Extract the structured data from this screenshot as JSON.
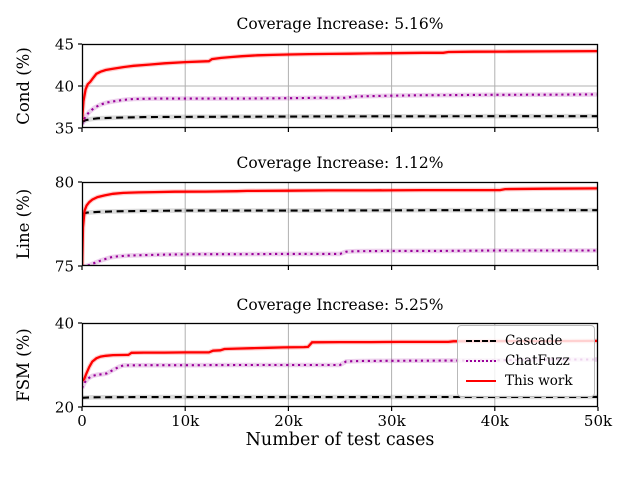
{
  "figure": {
    "xlabel": "Number of test cases",
    "colors": {
      "grid": "#b0b0b0",
      "spine": "#000000",
      "background": "#ffffff",
      "cascade": "#000000",
      "chatfuzz": "#990099",
      "this_work": "#ff0000"
    },
    "legend": {
      "position": "bottom-subplot-upper-right",
      "entries": [
        {
          "label": "Cascade",
          "color": "#000000",
          "style": "dashed"
        },
        {
          "label": "ChatFuzz",
          "color": "#990099",
          "style": "dotted"
        },
        {
          "label": "This work",
          "color": "#ff0000",
          "style": "solid"
        }
      ]
    }
  },
  "chart_data": [
    {
      "type": "line",
      "title": "Coverage Increase: 5.16%",
      "ylabel": "Cond (%)",
      "ylim": [
        35,
        45
      ],
      "yticks": [
        35,
        40,
        45
      ],
      "xlim": [
        0,
        50000
      ],
      "xticks": [
        0,
        10000,
        20000,
        30000,
        40000,
        50000
      ],
      "grid": true,
      "series": [
        {
          "name": "Cascade",
          "color": "#000000",
          "style": "dashed",
          "band": "rgba(90,90,90,0.22)",
          "x": [
            0,
            300,
            800,
            1500,
            2500,
            4000,
            6000,
            9000,
            15000,
            25000,
            40000,
            50000
          ],
          "y": [
            35.7,
            35.9,
            36.05,
            36.15,
            36.2,
            36.25,
            36.3,
            36.32,
            36.35,
            36.38,
            36.4,
            36.4
          ]
        },
        {
          "name": "ChatFuzz",
          "color": "#990099",
          "style": "dotted",
          "band": "rgba(153,0,153,0.18)",
          "x": [
            0,
            300,
            700,
            1200,
            1800,
            2500,
            3200,
            4000,
            5000,
            7000,
            10000,
            15000,
            20000,
            23000,
            25500,
            26500,
            28000,
            30000,
            33000,
            36000,
            40000,
            45000,
            50000
          ],
          "y": [
            35.4,
            36.3,
            36.9,
            37.4,
            37.8,
            38.05,
            38.2,
            38.35,
            38.45,
            38.5,
            38.5,
            38.5,
            38.55,
            38.6,
            38.6,
            38.75,
            38.8,
            38.85,
            38.9,
            38.92,
            38.95,
            38.97,
            39.0
          ]
        },
        {
          "name": "This work",
          "color": "#ff0000",
          "style": "solid",
          "band": "rgba(255,0,0,0.2)",
          "x": [
            0,
            150,
            350,
            550,
            800,
            1100,
            1400,
            1800,
            2300,
            3000,
            4000,
            5000,
            6500,
            8000,
            10000,
            12300,
            12600,
            13500,
            14500,
            15500,
            17000,
            18500,
            20000,
            22000,
            24000,
            26000,
            28000,
            30000,
            33000,
            35000,
            35500,
            38000,
            41000,
            45000,
            50000
          ],
          "y": [
            35.8,
            38.2,
            39.6,
            40.2,
            40.5,
            41.0,
            41.45,
            41.7,
            41.9,
            42.05,
            42.25,
            42.4,
            42.55,
            42.7,
            42.85,
            42.95,
            43.2,
            43.35,
            43.45,
            43.55,
            43.65,
            43.7,
            43.75,
            43.8,
            43.82,
            43.85,
            43.88,
            43.9,
            43.95,
            43.95,
            44.05,
            44.08,
            44.1,
            44.12,
            44.15
          ]
        }
      ]
    },
    {
      "type": "line",
      "title": "Coverage Increase: 1.12%",
      "ylabel": "Line (%)",
      "ylim": [
        75,
        80
      ],
      "yticks": [
        75,
        80
      ],
      "xlim": [
        0,
        50000
      ],
      "xticks": [
        0,
        10000,
        20000,
        30000,
        40000,
        50000
      ],
      "grid": true,
      "series": [
        {
          "name": "Cascade",
          "color": "#000000",
          "style": "dashed",
          "band": "rgba(90,90,90,0.22)",
          "x": [
            0,
            500,
            1500,
            3000,
            6000,
            10000,
            20000,
            35000,
            50000
          ],
          "y": [
            78.1,
            78.18,
            78.22,
            78.25,
            78.28,
            78.3,
            78.3,
            78.32,
            78.32
          ]
        },
        {
          "name": "ChatFuzz",
          "color": "#990099",
          "style": "dotted",
          "band": "rgba(153,0,153,0.18)",
          "x": [
            0,
            400,
            800,
            1300,
            1800,
            2300,
            2800,
            3500,
            4500,
            6000,
            8000,
            11000,
            15000,
            20000,
            25000,
            25600,
            26500,
            30000,
            35000,
            40000,
            45000,
            50000
          ],
          "y": [
            74.95,
            75.0,
            75.08,
            75.2,
            75.32,
            75.42,
            75.52,
            75.58,
            75.62,
            75.65,
            75.68,
            75.7,
            75.7,
            75.72,
            75.72,
            75.85,
            75.88,
            75.9,
            75.9,
            75.92,
            75.92,
            75.92
          ]
        },
        {
          "name": "This work",
          "color": "#ff0000",
          "style": "solid",
          "band": "rgba(255,0,0,0.2)",
          "x": [
            0,
            100,
            250,
            450,
            700,
            1000,
            1500,
            2200,
            3000,
            4000,
            5500,
            7000,
            9000,
            12000,
            15000,
            16000,
            20000,
            24000,
            28000,
            33000,
            38000,
            40500,
            41000,
            45000,
            50000
          ],
          "y": [
            74.6,
            77.3,
            78.3,
            78.6,
            78.8,
            78.95,
            79.1,
            79.2,
            79.3,
            79.35,
            79.38,
            79.4,
            79.42,
            79.43,
            79.45,
            79.47,
            79.48,
            79.5,
            79.5,
            79.52,
            79.52,
            79.52,
            79.58,
            79.6,
            79.62
          ]
        }
      ]
    },
    {
      "type": "line",
      "title": "Coverage Increase: 5.25%",
      "ylabel": "FSM (%)",
      "ylim": [
        20,
        40
      ],
      "yticks": [
        20,
        40
      ],
      "xlim": [
        0,
        50000
      ],
      "xticks": [
        0,
        10000,
        20000,
        30000,
        40000,
        50000
      ],
      "x_tick_labels": [
        "0",
        "10k",
        "20k",
        "30k",
        "40k",
        "50k"
      ],
      "grid": true,
      "series": [
        {
          "name": "Cascade",
          "color": "#000000",
          "style": "dashed",
          "band": "rgba(90,90,90,0.22)",
          "x": [
            0,
            1000,
            5000,
            20000,
            50000
          ],
          "y": [
            22.2,
            22.3,
            22.35,
            22.35,
            22.4
          ]
        },
        {
          "name": "ChatFuzz",
          "color": "#990099",
          "style": "dotted",
          "band": "rgba(153,0,153,0.18)",
          "x": [
            0,
            250,
            600,
            1000,
            1500,
            2000,
            2400,
            3000,
            3600,
            4000,
            6000,
            10000,
            15000,
            20000,
            25000,
            25600,
            27000,
            30000,
            35000,
            40000,
            43000,
            46000,
            50000
          ],
          "y": [
            24.5,
            25.8,
            26.8,
            27.4,
            27.7,
            27.8,
            28.0,
            28.8,
            29.6,
            29.9,
            29.95,
            29.95,
            30.0,
            30.0,
            30.0,
            30.85,
            30.95,
            31.0,
            31.05,
            31.1,
            31.25,
            31.3,
            31.3
          ]
        },
        {
          "name": "This work",
          "color": "#ff0000",
          "style": "solid",
          "band": "rgba(255,0,0,0.2)",
          "x": [
            0,
            200,
            400,
            700,
            1000,
            1400,
            1800,
            2300,
            3000,
            4500,
            4800,
            6000,
            8000,
            10000,
            12300,
            12700,
            13400,
            13800,
            15000,
            16500,
            18000,
            19500,
            21500,
            21900,
            22300,
            25000,
            28000,
            31000,
            33000,
            35500,
            36000,
            40000,
            45000,
            50000
          ],
          "y": [
            26.2,
            26.6,
            27.8,
            29.5,
            30.8,
            31.6,
            32.0,
            32.2,
            32.35,
            32.4,
            32.9,
            32.95,
            32.95,
            33.0,
            33.0,
            33.4,
            33.5,
            33.8,
            33.9,
            34.0,
            34.1,
            34.2,
            34.25,
            34.3,
            35.4,
            35.45,
            35.45,
            35.5,
            35.5,
            35.5,
            35.65,
            35.7,
            35.7,
            35.75
          ]
        }
      ]
    }
  ]
}
